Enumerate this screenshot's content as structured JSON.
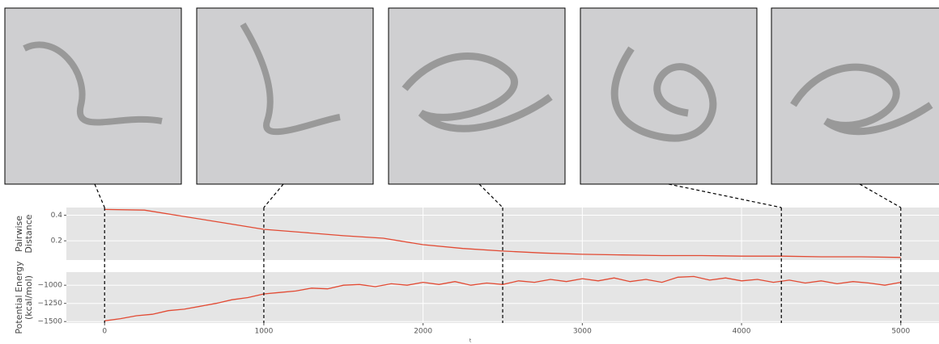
{
  "chart_data": [
    {
      "type": "line",
      "ylabel": [
        "Pairwise",
        "Distance"
      ],
      "x": [
        0,
        250,
        500,
        750,
        1000,
        1250,
        1500,
        1750,
        2000,
        2250,
        2500,
        2750,
        3000,
        3250,
        3500,
        3750,
        4000,
        4250,
        4500,
        4750,
        5000
      ],
      "series": [
        {
          "color": "#e24a33",
          "values": [
            0.445,
            0.44,
            0.39,
            0.34,
            0.29,
            0.265,
            0.24,
            0.22,
            0.17,
            0.14,
            0.12,
            0.105,
            0.095,
            0.09,
            0.085,
            0.085,
            0.08,
            0.08,
            0.075,
            0.075,
            0.07
          ]
        }
      ],
      "xlim": [
        -240,
        5240
      ],
      "xticks": [
        0,
        1000,
        2000,
        3000,
        4000,
        5000
      ],
      "ylim": [
        0.05,
        0.46
      ],
      "yticks": [
        0.2,
        0.4
      ],
      "grid": true
    },
    {
      "type": "line",
      "xlabel": "t",
      "ylabel": [
        "Potential Energy",
        "(kcal/mol)"
      ],
      "x": [
        0,
        100,
        200,
        300,
        400,
        500,
        600,
        700,
        800,
        900,
        1000,
        1100,
        1200,
        1300,
        1400,
        1500,
        1600,
        1700,
        1800,
        1900,
        2000,
        2100,
        2200,
        2300,
        2400,
        2500,
        2600,
        2700,
        2800,
        2900,
        3000,
        3100,
        3200,
        3300,
        3400,
        3500,
        3600,
        3700,
        3800,
        3900,
        4000,
        4100,
        4200,
        4300,
        4400,
        4500,
        4600,
        4700,
        4800,
        4900,
        5000
      ],
      "series": [
        {
          "color": "#e24a33",
          "values": [
            -1490,
            -1460,
            -1420,
            -1400,
            -1350,
            -1330,
            -1290,
            -1250,
            -1200,
            -1170,
            -1120,
            -1100,
            -1080,
            -1040,
            -1050,
            -1000,
            -990,
            -1020,
            -980,
            -1000,
            -960,
            -990,
            -950,
            -1000,
            -970,
            -990,
            -940,
            -960,
            -920,
            -950,
            -910,
            -940,
            -900,
            -950,
            -920,
            -960,
            -890,
            -880,
            -930,
            -900,
            -940,
            -920,
            -960,
            -930,
            -970,
            -940,
            -980,
            -950,
            -970,
            -1000,
            -960
          ]
        }
      ],
      "xlim": [
        -240,
        5240
      ],
      "xticks": [
        0,
        1000,
        2000,
        3000,
        4000,
        5000
      ],
      "ylim": [
        -1520,
        -820
      ],
      "yticks": [
        {
          "value": -1500,
          "label": "−1500"
        },
        {
          "value": -1250,
          "label": "−1250"
        },
        {
          "value": -1000,
          "label": "−1000"
        }
      ],
      "grid": true
    }
  ],
  "snapshots": {
    "t": [
      0,
      1000,
      2500,
      4250,
      5000
    ]
  }
}
